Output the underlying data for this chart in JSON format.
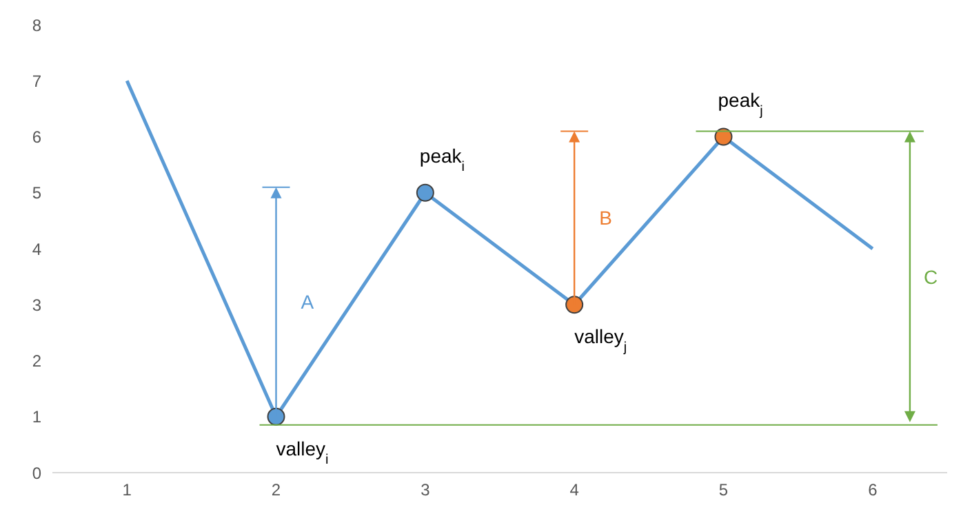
{
  "chart_data": {
    "type": "line",
    "categories": [
      "1",
      "2",
      "3",
      "4",
      "5",
      "6"
    ],
    "series": [
      {
        "color": "#5b9bd5",
        "values": [
          7,
          1,
          5,
          3,
          6,
          4
        ],
        "marker": "none"
      },
      {
        "type": "scatter",
        "color": "#5b9bd5",
        "x": [
          "2",
          "3"
        ],
        "values": [
          1,
          5
        ],
        "marker": "circle"
      },
      {
        "type": "scatter",
        "color": "#ed7d31",
        "x": [
          "4",
          "5"
        ],
        "values": [
          3,
          6
        ],
        "marker": "circle"
      }
    ],
    "ylim": [
      0,
      8
    ],
    "yticks": [
      0,
      1,
      2,
      3,
      4,
      5,
      6,
      7,
      8
    ],
    "grid": false,
    "annotations": [
      {
        "text": "peak$_{i}$",
        "x": "3",
        "y": 5
      },
      {
        "text": "valley$_{i}$",
        "x": "2",
        "y": 1
      },
      {
        "text": "valley$_{j}$",
        "x": "4",
        "y": 3
      },
      {
        "text": "peak$_{j}$",
        "x": "5",
        "y": 6
      },
      "A",
      "B",
      "C"
    ]
  }
}
